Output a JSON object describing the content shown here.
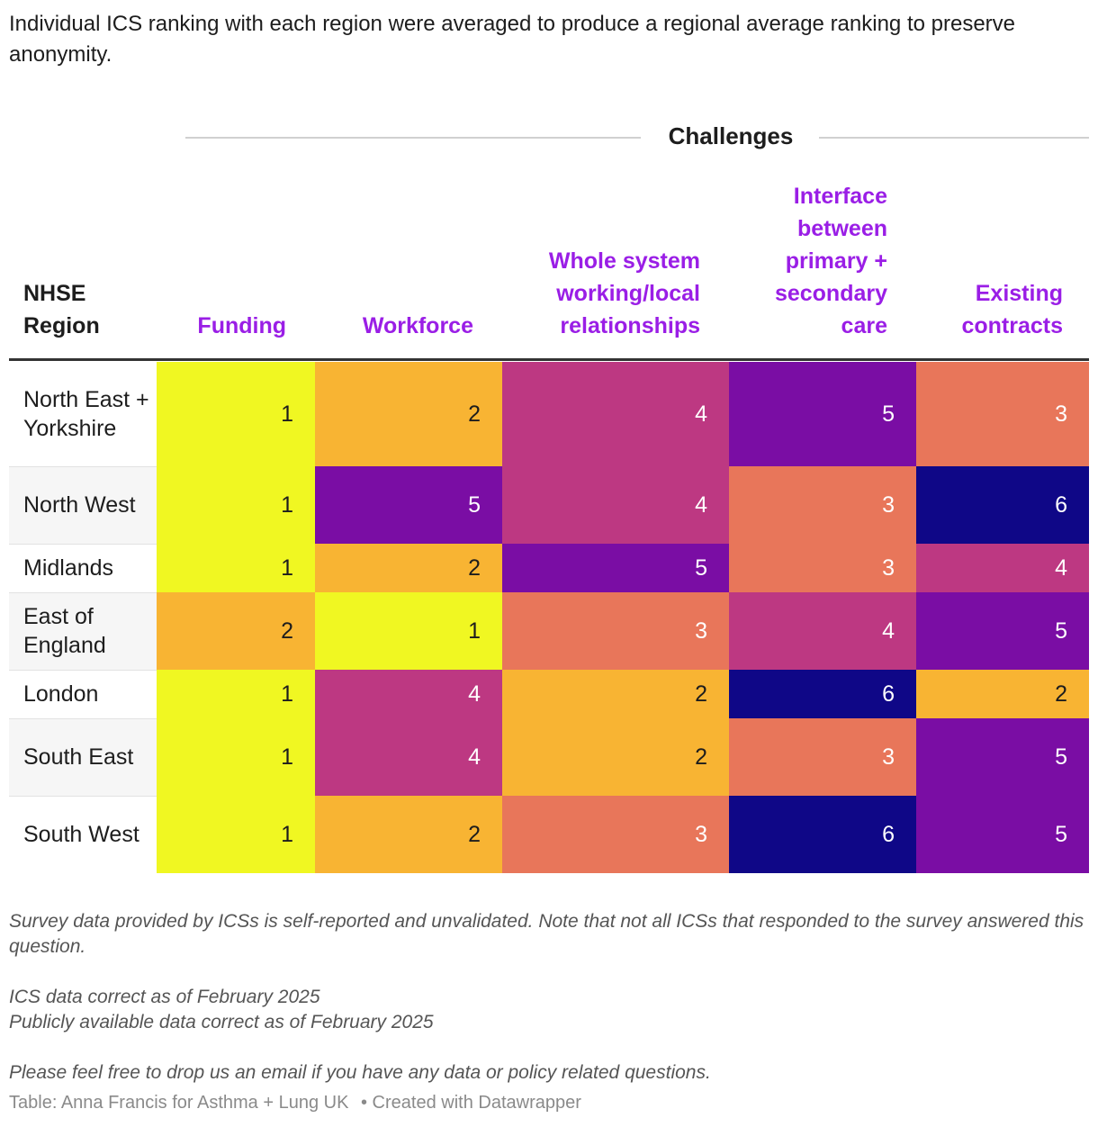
{
  "intro": "Individual ICS ranking with each region were averaged to produce a regional average ranking to preserve anonymity.",
  "group_label": "Challenges",
  "colors": {
    "rank1": "#f0f722",
    "rank2": "#f8b433",
    "rank3": "#e8765a",
    "rank4": "#bd3882",
    "rank5": "#7a0da4",
    "rank6": "#0f0787",
    "header_accent": "#9a1ee6"
  },
  "chart_data": {
    "type": "table",
    "title": "",
    "group_header": "Challenges",
    "columns": [
      "NHSE Region",
      "Funding",
      "Workforce",
      "Whole system working/local relationships",
      "Interface between primary + secondary care",
      "Existing contracts"
    ],
    "rows": [
      {
        "region": "North East + Yorkshire",
        "values": [
          1,
          2,
          4,
          5,
          3
        ]
      },
      {
        "region": "North West",
        "values": [
          1,
          5,
          4,
          3,
          6
        ]
      },
      {
        "region": "Midlands",
        "values": [
          1,
          2,
          5,
          3,
          4
        ]
      },
      {
        "region": "East of England",
        "values": [
          2,
          1,
          3,
          4,
          5
        ]
      },
      {
        "region": "London",
        "values": [
          1,
          4,
          2,
          6,
          2
        ]
      },
      {
        "region": "South East",
        "values": [
          1,
          4,
          2,
          3,
          5
        ]
      },
      {
        "region": "South West",
        "values": [
          1,
          2,
          3,
          6,
          5
        ]
      }
    ]
  },
  "notes": [
    "Survey data provided by ICSs is self-reported and unvalidated. Note that not all ICSs that responded to the survey answered this question.",
    "",
    "ICS data correct as of February 2025",
    "Publicly available data correct as of February 2025",
    "",
    "Please feel free to drop us an email if you have any data or policy related questions."
  ],
  "credit": {
    "source": "Table: Anna Francis for Asthma + Lung UK",
    "tool": "• Created with Datawrapper"
  }
}
